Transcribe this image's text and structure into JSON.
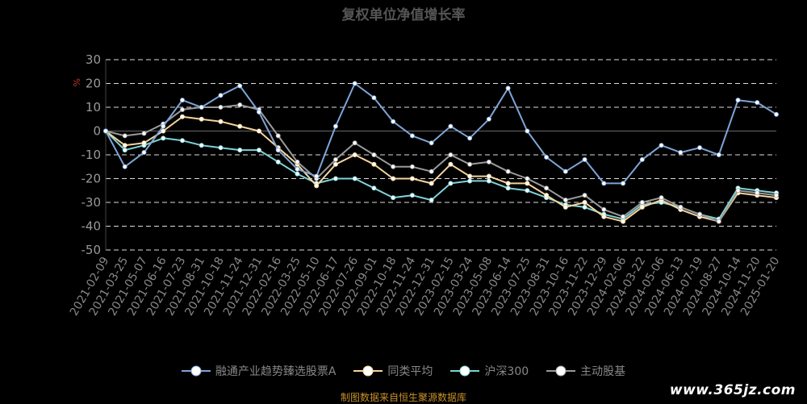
{
  "chart_data": {
    "type": "line",
    "title": "复权单位净值增长率",
    "unit": "%",
    "ylim": [
      -50,
      30
    ],
    "yticks": [
      30,
      20,
      10,
      0,
      -10,
      -20,
      -30,
      -40,
      -50
    ],
    "categories": [
      "2021-02-09",
      "2021-03-25",
      "2021-05-07",
      "2021-06-16",
      "2021-07-23",
      "2021-08-31",
      "2021-10-18",
      "2021-11-24",
      "2021-12-31",
      "2022-02-16",
      "2022-03-25",
      "2022-05-10",
      "2022-06-17",
      "2022-07-26",
      "2022-09-01",
      "2022-10-18",
      "2022-11-24",
      "2022-12-31",
      "2023-02-15",
      "2023-03-24",
      "2023-05-08",
      "2023-06-14",
      "2023-07-25",
      "2023-08-31",
      "2023-10-16",
      "2023-11-22",
      "2023-12-29",
      "2024-02-06",
      "2024-03-22",
      "2024-05-06",
      "2024-06-13",
      "2024-07-19",
      "2024-08-27",
      "2024-10-14",
      "2024-11-20",
      "2025-01-20"
    ],
    "series": [
      {
        "name": "融通产业趋势臻选股票A",
        "color": "#7ea5d8",
        "values": [
          0,
          -15,
          -9,
          2,
          13,
          10,
          15,
          19,
          8,
          -8,
          -16,
          -19,
          2,
          20,
          14,
          4,
          -2,
          -5,
          2,
          -3,
          5,
          18,
          0,
          -11,
          -17,
          -12,
          -22,
          -22,
          -12,
          -6,
          -9,
          -7,
          -10,
          13,
          12,
          7
        ]
      },
      {
        "name": "同类平均",
        "color": "#f5d49a",
        "values": [
          0,
          -6,
          -5,
          0,
          6,
          5,
          4,
          2,
          0,
          -7,
          -14,
          -23,
          -14,
          -10,
          -14,
          -20,
          -20,
          -22,
          -14,
          -19,
          -19,
          -22,
          -22,
          -27,
          -32,
          -30,
          -36,
          -38,
          -32,
          -29,
          -33,
          -36,
          -38,
          -26,
          -27,
          -28
        ]
      },
      {
        "name": "沪深300",
        "color": "#7dd3d8",
        "values": [
          0,
          -8,
          -6,
          -3,
          -4,
          -6,
          -7,
          -8,
          -8,
          -13,
          -18,
          -22,
          -20,
          -20,
          -24,
          -28,
          -27,
          -29,
          -22,
          -21,
          -21,
          -24,
          -25,
          -28,
          -31,
          -32,
          -35,
          -37,
          -31,
          -30,
          -32,
          -35,
          -37,
          -24,
          -25,
          -26
        ]
      },
      {
        "name": "主动股基",
        "color": "#9a9a9a",
        "values": [
          0,
          -2,
          -1,
          3,
          9,
          10,
          10,
          11,
          9,
          -2,
          -13,
          -20,
          -12,
          -5,
          -10,
          -15,
          -15,
          -17,
          -10,
          -14,
          -13,
          -17,
          -20,
          -24,
          -29,
          -27,
          -33,
          -36,
          -30,
          -28,
          -32,
          -35,
          -38,
          -25,
          -26,
          -27
        ]
      }
    ]
  },
  "source_text": "制图数据来自恒生聚源数据库",
  "watermark": "www.365jz.com"
}
